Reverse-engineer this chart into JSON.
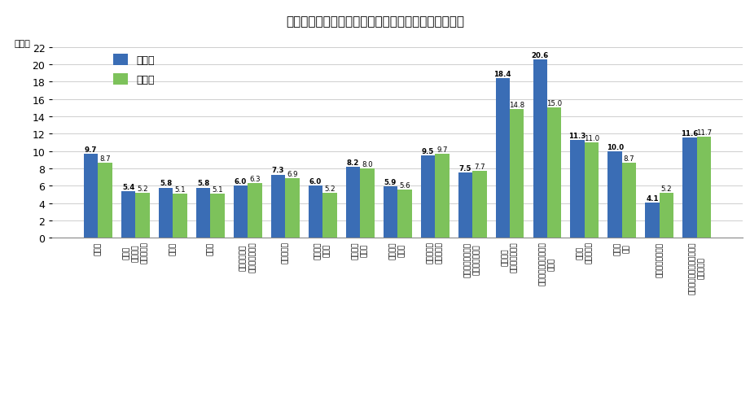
{
  "title": "図３－１　産業別入職率・離職率（令和５年上半期）",
  "ylabel": "(%)",
  "ylim": [
    0,
    22
  ],
  "yticks": [
    0,
    2,
    4,
    6,
    8,
    10,
    12,
    14,
    16,
    18,
    20,
    22
  ],
  "categories": [
    "産業計",
    "鉱業、\n採石業、\n砂利採取業",
    "建設業",
    "製造業",
    "電気・ガス・\n熱供給・水道業",
    "情報通信業",
    "運輸業、\n郵便業",
    "卸売業、\n小売業",
    "金融業、\n保険業",
    "不動産業、\n物品賃貸業",
    "学術研究、専門・\n技術サービス業",
    "宿泊業、\n飲食サービス業",
    "生活関連サービス業、\n娯楽業",
    "教育、\n学習支援業",
    "医療、\n福祉",
    "複合サービス事業",
    "（他に分類されないもの）\nサービス業"
  ],
  "employment_rate": [
    9.7,
    5.4,
    5.8,
    5.8,
    6.0,
    7.3,
    6.0,
    8.2,
    5.9,
    9.5,
    7.5,
    18.4,
    20.6,
    11.3,
    10.0,
    4.1,
    11.6
  ],
  "separation_rate": [
    8.7,
    5.2,
    5.1,
    5.1,
    6.3,
    6.9,
    5.2,
    8.0,
    5.6,
    9.7,
    7.7,
    14.8,
    15.0,
    11.0,
    8.7,
    5.2,
    11.7
  ],
  "bar_color_employment": "#3A6DB5",
  "bar_color_separation": "#7DC25B",
  "legend_employment": "入職率",
  "legend_separation": "離職率",
  "background_color": "#FFFFFF",
  "bar_width": 0.38
}
